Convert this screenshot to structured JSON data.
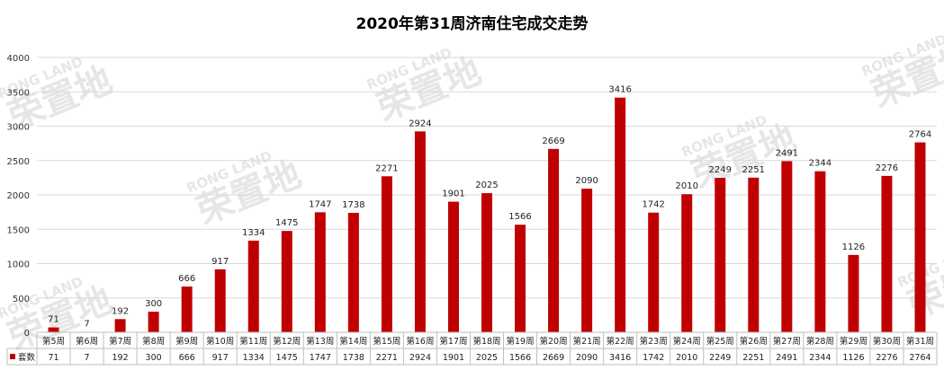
{
  "chart_data": {
    "type": "bar",
    "title": "2020年第31周济南住宅成交走势",
    "categories": [
      "第5周",
      "第6周",
      "第7周",
      "第8周",
      "第9周",
      "第10周",
      "第11周",
      "第12周",
      "第13周",
      "第14周",
      "第15周",
      "第16周",
      "第17周",
      "第18周",
      "第19周",
      "第20周",
      "第21周",
      "第22周",
      "第23周",
      "第24周",
      "第25周",
      "第26周",
      "第27周",
      "第28周",
      "第29周",
      "第30周",
      "第31周"
    ],
    "series": [
      {
        "name": "套数",
        "values": [
          71,
          7,
          192,
          300,
          666,
          917,
          1334,
          1475,
          1747,
          1738,
          2271,
          2924,
          1901,
          2025,
          1566,
          2669,
          2090,
          3416,
          1742,
          2010,
          2249,
          2251,
          2491,
          2344,
          1126,
          2276,
          2764
        ]
      }
    ],
    "ylim": [
      0,
      4000
    ],
    "yticks": [
      0,
      500,
      1000,
      1500,
      2000,
      2500,
      3000,
      3500,
      4000
    ],
    "grid": true,
    "bar_color": "#c00000",
    "data_table": true
  },
  "watermark": {
    "latin": "RONG LAND",
    "cjk": "荣置地",
    "color": "#e6e6e6"
  }
}
